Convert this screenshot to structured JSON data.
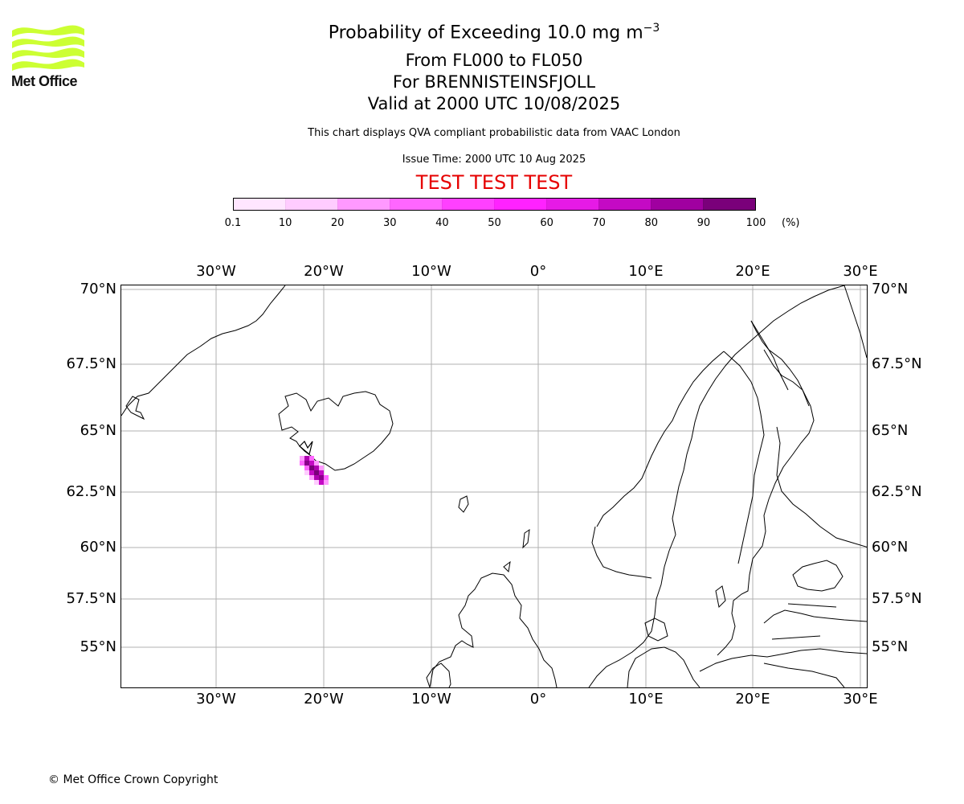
{
  "logo": {
    "name": "Met Office",
    "colors": [
      "#ccff33"
    ]
  },
  "title": {
    "main": "Probability of Exceeding 10.0 mg m",
    "main_exp": "−3",
    "line2": "From FL000 to FL050",
    "line3": "For BRENNISTEINSFJOLL",
    "line4": "Valid at 2000 UTC 10/08/2025"
  },
  "subtitle": "This chart displays QVA compliant probabilistic data from VAAC London",
  "issue_time": "Issue Time: 2000 UTC 10 Aug 2025",
  "test_banner": "TEST TEST TEST",
  "colorbar": {
    "ticks": [
      "0.1",
      "10",
      "20",
      "30",
      "40",
      "50",
      "60",
      "70",
      "80",
      "90",
      "100"
    ],
    "unit": "(%)",
    "colors": [
      "#ffe6ff",
      "#ffccff",
      "#ff99ff",
      "#ff66ff",
      "#ff40ff",
      "#ff22ff",
      "#e61ae6",
      "#c40ac4",
      "#a000a0",
      "#7a007a"
    ]
  },
  "map": {
    "lon_labels": [
      "30°W",
      "20°W",
      "10°W",
      "0°",
      "10°E",
      "20°E",
      "30°E"
    ],
    "lat_labels": [
      "70°N",
      "67.5°N",
      "65°N",
      "62.5°N",
      "60°N",
      "57.5°N",
      "55°N"
    ],
    "plume_color": "#b000b0"
  },
  "copyright": "© Met Office Crown Copyright"
}
